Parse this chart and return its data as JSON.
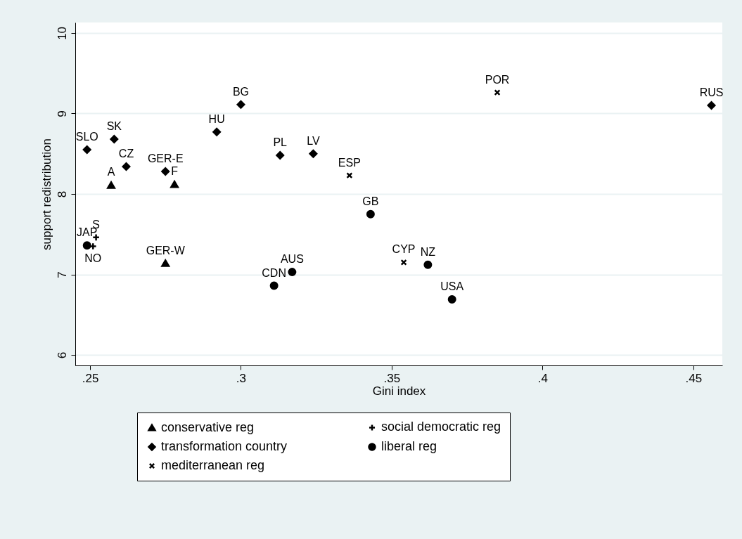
{
  "chart_data": {
    "type": "scatter",
    "xlabel": "Gini index",
    "ylabel": "support  redistribution",
    "xlim": [
      0.2451,
      0.4596
    ],
    "ylim": [
      5.87,
      10.13
    ],
    "xticks": [
      {
        "value": 0.25,
        "label": ".25"
      },
      {
        "value": 0.3,
        "label": ".3"
      },
      {
        "value": 0.35,
        "label": ".35"
      },
      {
        "value": 0.4,
        "label": ".4"
      },
      {
        "value": 0.45,
        "label": ".45"
      }
    ],
    "yticks": [
      6,
      7,
      8,
      9,
      10
    ],
    "grid": "y",
    "legend": "bottom",
    "series": [
      {
        "name": "conservative reg",
        "color": "#000000",
        "marker": "triangle",
        "x": [
          0.257,
          0.278,
          0.275
        ],
        "values": [
          8.11,
          8.12,
          7.14
        ],
        "value_labels": [
          "A",
          "F",
          "GER-W"
        ]
      },
      {
        "name": "social democratic reg",
        "color": "#000000",
        "marker": "plus",
        "x": [
          0.252,
          0.251
        ],
        "values": [
          7.46,
          7.35
        ],
        "value_labels": [
          "S",
          "NO"
        ]
      },
      {
        "name": "transformation country",
        "color": "#000000",
        "marker": "diamond",
        "x": [
          0.249,
          0.258,
          0.262,
          0.275,
          0.292,
          0.3,
          0.313,
          0.324,
          0.456
        ],
        "values": [
          8.55,
          8.68,
          8.34,
          8.28,
          8.77,
          9.11,
          8.48,
          8.5,
          9.1
        ],
        "value_labels": [
          "SLO",
          "SK",
          "CZ",
          "GER-E",
          "HU",
          "BG",
          "PL",
          "LV",
          "RUS"
        ]
      },
      {
        "name": "liberal reg",
        "color": "#000000",
        "marker": "circle",
        "x": [
          0.249,
          0.343,
          0.317,
          0.311,
          0.362,
          0.37
        ],
        "values": [
          7.36,
          7.75,
          7.03,
          6.86,
          7.12,
          6.69
        ],
        "value_labels": [
          "JAP",
          "GB",
          "AUS",
          "CDN",
          "NZ",
          "USA"
        ]
      },
      {
        "name": "mediterranean reg",
        "color": "#000000",
        "marker": "cross",
        "x": [
          0.336,
          0.385,
          0.354
        ],
        "values": [
          8.23,
          9.26,
          7.15
        ],
        "value_labels": [
          "ESP",
          "POR",
          "CYP"
        ]
      }
    ]
  }
}
